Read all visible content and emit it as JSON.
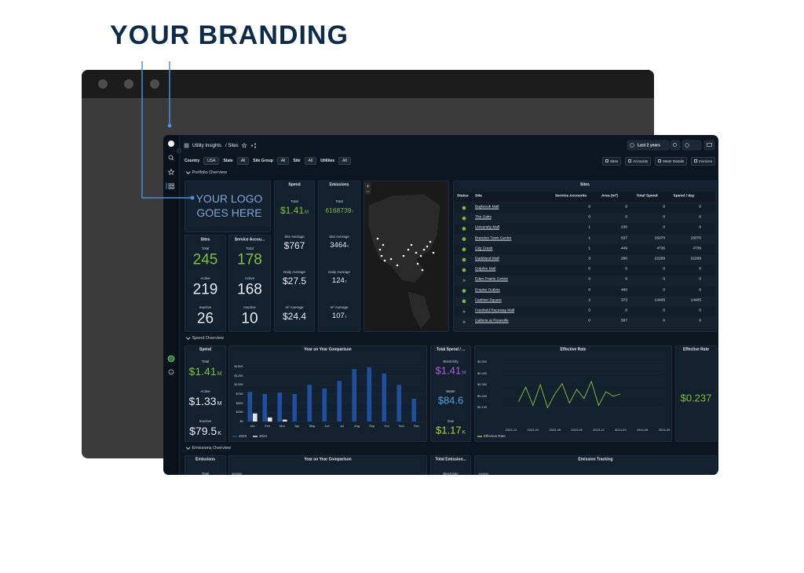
{
  "branding": {
    "title": "YOUR BRANDING"
  },
  "header": {
    "app": "Utility Insights",
    "page": "/ Sites",
    "time_range": "Last 2 years"
  },
  "filters": [
    {
      "label": "Country",
      "value": "USA"
    },
    {
      "label": "State",
      "value": "All"
    },
    {
      "label": "Site Group",
      "value": "All"
    },
    {
      "label": "Site",
      "value": "All"
    },
    {
      "label": "Utilities",
      "value": "All"
    }
  ],
  "nav_buttons": [
    "Sites",
    "Accounts",
    "Meter Details",
    "Invoices"
  ],
  "sections": [
    "Portfolio Overview",
    "Spend Overview",
    "Emissions Overview"
  ],
  "logo": {
    "lines": [
      "YOUR LOGO",
      "GOES HERE"
    ]
  },
  "portfolio": {
    "spend": {
      "title": "Spend",
      "stats": [
        {
          "label": "Total",
          "value": "$1.41",
          "unit": "M",
          "color": "#7cc142"
        },
        {
          "label": "Site Average",
          "value": "$767"
        },
        {
          "label": "Daily Average",
          "value": "$27.5"
        },
        {
          "label": "m² Average",
          "value": "$24.4"
        }
      ]
    },
    "emissions": {
      "title": "Emissions",
      "stats": [
        {
          "label": "Total",
          "value": "6168739",
          "unit": "t",
          "color": "#7cc142"
        },
        {
          "label": "Site Average",
          "value": "3464",
          "unit": "t"
        },
        {
          "label": "Daily Average",
          "value": "124",
          "unit": "t"
        },
        {
          "label": "m² Average",
          "value": "107",
          "unit": "t"
        }
      ]
    },
    "sites": {
      "title": "Sites",
      "stats": [
        {
          "label": "Total",
          "value": "245",
          "color": "#7cc142"
        },
        {
          "label": "Active",
          "value": "219"
        },
        {
          "label": "Inactive",
          "value": "26"
        }
      ]
    },
    "service_accounts": {
      "title": "Service Accou...",
      "stats": [
        {
          "label": "Total",
          "value": "178",
          "color": "#7cc142"
        },
        {
          "label": "Active",
          "value": "168"
        },
        {
          "label": "Inactive",
          "value": "10"
        }
      ]
    }
  },
  "sites_table": {
    "title": "Sites",
    "columns": [
      "Status",
      "Site",
      "Service Accounts",
      "Area (m²)",
      "Total Spend",
      "Spend / day"
    ],
    "rows": [
      [
        "Baybrook Mall",
        0,
        0,
        0,
        0
      ],
      [
        "The Oaks",
        0,
        0,
        0,
        0
      ],
      [
        "University Mall",
        1,
        230,
        0,
        0
      ],
      [
        "Brandon Town Centre",
        1,
        537,
        15070,
        15070
      ],
      [
        "City Creek",
        1,
        449,
        4736,
        4736
      ],
      [
        "Dadeland Mall",
        3,
        280,
        22289,
        22289
      ],
      [
        "Dolphin Mall",
        0,
        0,
        0,
        0
      ],
      [
        "Eden Prairie Center",
        0,
        0,
        0,
        0
      ],
      [
        "Empire Outlets",
        0,
        480,
        0,
        0
      ],
      [
        "Fashion Square",
        2,
        372,
        14405,
        14405
      ],
      [
        "Freehold Raceway Mall",
        0,
        0,
        0,
        0
      ],
      [
        "Galleria at Roseville",
        0,
        567,
        0,
        0
      ]
    ],
    "status_colors": [
      "#7cb342",
      "#7cb342",
      "#7cb342",
      "#7cb342",
      "#7cb342",
      "#7cb342",
      "#7cb342",
      "#5d6b7a",
      "#7cb342",
      "#7cb342",
      "#5d6b7a",
      "#5d6b7a"
    ]
  },
  "spend_overview": {
    "spend": {
      "title": "Spend",
      "stats": [
        {
          "label": "Total",
          "value": "$1.41",
          "unit": "M",
          "color": "#7cc142"
        },
        {
          "label": "Active",
          "value": "$1.33",
          "unit": "M"
        },
        {
          "label": "Inactive",
          "value": "$79.5",
          "unit": "K"
        }
      ]
    },
    "yoy_chart": {
      "type": "bar",
      "title": "Year on Year Comparison",
      "categories": [
        "Jan",
        "Feb",
        "Mar",
        "Apr",
        "May",
        "Jun",
        "Jul",
        "Aug",
        "Sep",
        "Oct",
        "Nov",
        "Dec"
      ],
      "series": [
        {
          "name": "2023",
          "color": "#1f4f9e",
          "values": [
            81000,
            75000,
            79000,
            75000,
            100000,
            90000,
            111000,
            143000,
            148000,
            131000,
            100000,
            62000
          ]
        },
        {
          "name": "2024",
          "color": "#dde5ef",
          "values": [
            22000,
            11000,
            5000,
            null,
            null,
            null,
            null,
            null,
            null,
            null,
            null,
            null
          ]
        }
      ],
      "ylim": [
        0,
        150000
      ],
      "yticks": [
        {
          "value": 0,
          "label": "$0"
        },
        {
          "value": 25000,
          "label": "$25K"
        },
        {
          "value": 50000,
          "label": "$50K"
        },
        {
          "value": 75000,
          "label": "$75K"
        },
        {
          "value": 100000,
          "label": "$100K"
        },
        {
          "value": 125000,
          "label": "$125K"
        },
        {
          "value": 150000,
          "label": "$150K"
        }
      ],
      "grid": true
    },
    "total_spend": {
      "title": "Total Spend / ...",
      "stats": [
        {
          "label": "Electricity",
          "value": "$1.41",
          "unit": "M",
          "color": "#b25de3"
        },
        {
          "label": "Water",
          "value": "$84.6",
          "color": "#4fa3e3"
        },
        {
          "label": "Gas",
          "value": "$1.17",
          "unit": "K",
          "color": "#b6d43a"
        }
      ]
    },
    "rate_chart": {
      "type": "line",
      "title": "Effective Rate",
      "x": [
        "2023-01",
        "2023-02",
        "2023-03",
        "2023-04",
        "2023-05",
        "2023-06",
        "2023-07",
        "2023-08",
        "2023-09",
        "2023-10",
        "2023-11",
        "2023-12",
        "2024-01",
        "2024-02",
        "2024-03"
      ],
      "series": [
        {
          "name": "Effective Rate",
          "color": "#8cc63f",
          "values": [
            0.15,
            0.28,
            0.12,
            0.3,
            0.1,
            0.22,
            0.31,
            0.14,
            0.26,
            0.18,
            0.33,
            0.12,
            0.24,
            0.2,
            0.22
          ]
        }
      ],
      "xlim": [
        "2022-12",
        "2024-09"
      ],
      "xticks": [
        "2022-12",
        "2023-03",
        "2023-06",
        "2023-09",
        "2023-12",
        "2024-03",
        "2024-06",
        "2024-09"
      ],
      "ylim": [
        0,
        0.5
      ],
      "yticks": [
        {
          "value": 0.1,
          "label": "$0.100"
        },
        {
          "value": 0.2,
          "label": "$0.200"
        },
        {
          "value": 0.3,
          "label": "$0.300"
        },
        {
          "value": 0.4,
          "label": "$0.400"
        },
        {
          "value": 0.5,
          "label": "$0.500"
        }
      ],
      "grid": true
    },
    "effective_rate": {
      "title": "Effective Rate",
      "value": "$0.237"
    }
  },
  "emissions_overview": {
    "emissions": {
      "title": "Emissions",
      "label": "Total"
    },
    "yoy_chart": {
      "title": "Year on Year Comparison",
      "top_tick": "300000"
    },
    "total_emissions": {
      "title": "Total Emission...",
      "label": "Electricity"
    },
    "tracking": {
      "title": "Emission Tracking",
      "top_tick": "140000"
    }
  }
}
